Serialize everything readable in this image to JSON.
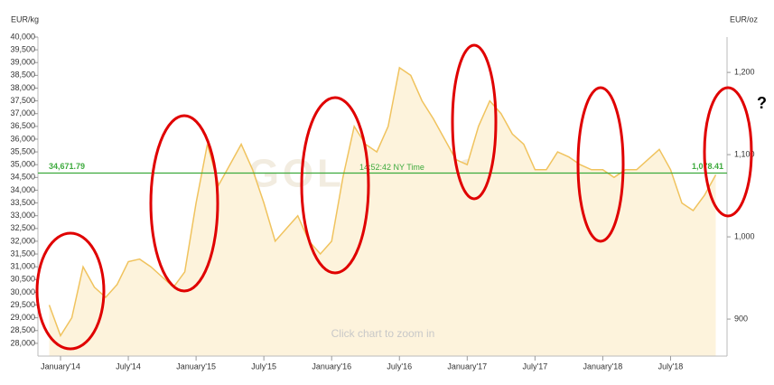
{
  "chart_data": {
    "type": "area",
    "y_label": "EUR/kg",
    "y2_label": "EUR/oz",
    "watermark": "GOLDPRICE",
    "hint": "Click chart to zoom in",
    "annotation": "?",
    "x": [
      "2013-12",
      "2014-01",
      "2014-02",
      "2014-03",
      "2014-04",
      "2014-05",
      "2014-06",
      "2014-07",
      "2014-08",
      "2014-09",
      "2014-10",
      "2014-11",
      "2014-12",
      "2015-01",
      "2015-02",
      "2015-03",
      "2015-04",
      "2015-05",
      "2015-06",
      "2015-07",
      "2015-08",
      "2015-09",
      "2015-10",
      "2015-11",
      "2015-12",
      "2016-01",
      "2016-02",
      "2016-03",
      "2016-04",
      "2016-05",
      "2016-06",
      "2016-07",
      "2016-08",
      "2016-09",
      "2016-10",
      "2016-11",
      "2016-12",
      "2017-01",
      "2017-02",
      "2017-03",
      "2017-04",
      "2017-05",
      "2017-06",
      "2017-07",
      "2017-08",
      "2017-09",
      "2017-10",
      "2017-11",
      "2017-12",
      "2018-01",
      "2018-02",
      "2018-03",
      "2018-04",
      "2018-05",
      "2018-06",
      "2018-07",
      "2018-08",
      "2018-09",
      "2018-10",
      "2018-11"
    ],
    "series": [
      {
        "name": "EUR/kg",
        "color": "#f0c35e",
        "fill": "#fdf3dc",
        "axis": "y",
        "values": [
          29500,
          28300,
          29000,
          31000,
          30200,
          29800,
          30300,
          31200,
          31300,
          31000,
          30600,
          30200,
          30800,
          33500,
          35800,
          34200,
          35000,
          35800,
          34800,
          33500,
          32000,
          32500,
          33000,
          32000,
          31500,
          32000,
          34500,
          36500,
          35800,
          35500,
          36500,
          38800,
          38500,
          37500,
          36800,
          36000,
          35200,
          35000,
          36500,
          37500,
          37000,
          36200,
          35800,
          34800,
          34800,
          35500,
          35300,
          35000,
          34800,
          34800,
          34500,
          34800,
          34800,
          35200,
          35600,
          34800,
          33500,
          33200,
          33800,
          34600
        ]
      }
    ],
    "xlim": [
      "2013-11",
      "2018-12"
    ],
    "xticks": [
      {
        "value": "2014-01",
        "label": "January'14"
      },
      {
        "value": "2014-07",
        "label": "July'14"
      },
      {
        "value": "2015-01",
        "label": "January'15"
      },
      {
        "value": "2015-07",
        "label": "July'15"
      },
      {
        "value": "2016-01",
        "label": "January'16"
      },
      {
        "value": "2016-07",
        "label": "July'16"
      },
      {
        "value": "2017-01",
        "label": "January'17"
      },
      {
        "value": "2017-07",
        "label": "July'17"
      },
      {
        "value": "2018-01",
        "label": "January'18"
      },
      {
        "value": "2018-07",
        "label": "July'18"
      }
    ],
    "ylim": [
      27500,
      40000
    ],
    "yticks": [
      {
        "value": 28000,
        "label": "28,000"
      },
      {
        "value": 28500,
        "label": "28,500"
      },
      {
        "value": 29000,
        "label": "29,000"
      },
      {
        "value": 29500,
        "label": "29,500"
      },
      {
        "value": 30000,
        "label": "30,000"
      },
      {
        "value": 30500,
        "label": "30,500"
      },
      {
        "value": 31000,
        "label": "31,000"
      },
      {
        "value": 31500,
        "label": "31,500"
      },
      {
        "value": 32000,
        "label": "32,000"
      },
      {
        "value": 32500,
        "label": "32,500"
      },
      {
        "value": 33000,
        "label": "33,000"
      },
      {
        "value": 33500,
        "label": "33,500"
      },
      {
        "value": 34000,
        "label": "34,000"
      },
      {
        "value": 34500,
        "label": "34,500"
      },
      {
        "value": 35000,
        "label": "35,000"
      },
      {
        "value": 35500,
        "label": "35,500"
      },
      {
        "value": 36000,
        "label": "36,000"
      },
      {
        "value": 36500,
        "label": "36,500"
      },
      {
        "value": 37000,
        "label": "37,000"
      },
      {
        "value": 37500,
        "label": "37,500"
      },
      {
        "value": 38000,
        "label": "38,000"
      },
      {
        "value": 38500,
        "label": "38,500"
      },
      {
        "value": 39000,
        "label": "39,000"
      },
      {
        "value": 39500,
        "label": "39,500"
      },
      {
        "value": 40000,
        "label": "40,000"
      }
    ],
    "y2lim": [
      855,
      1243
    ],
    "y2ticks": [
      900,
      {
        "value": 1000,
        "label": "1,000"
      },
      {
        "value": 1100,
        "label": "1,100"
      },
      {
        "value": 1200,
        "label": "1,200"
      }
    ],
    "reference_line": {
      "value": 34671.79,
      "label": "34,671.79",
      "right_label": "1,078.41",
      "note": "14:52:42 NY Time",
      "color": "#3daa3d"
    }
  }
}
